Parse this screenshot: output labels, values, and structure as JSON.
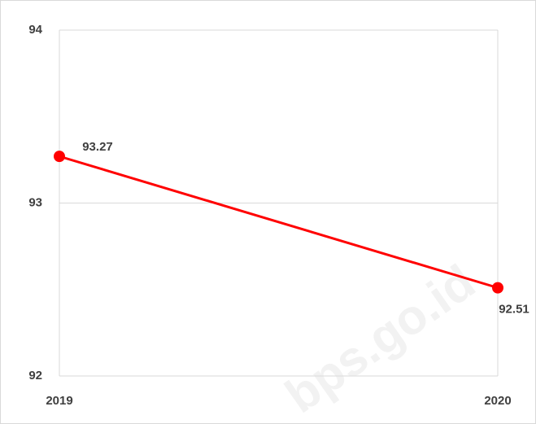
{
  "chart_data": {
    "type": "line",
    "categories": [
      "2019",
      "2020"
    ],
    "series": [
      {
        "name": null,
        "color": "#ff0000",
        "values": [
          93.27,
          92.51
        ]
      }
    ],
    "ylim": [
      92,
      94
    ],
    "yticks": [
      92,
      93,
      94
    ],
    "grid": true,
    "watermark": "bps.go.id"
  }
}
